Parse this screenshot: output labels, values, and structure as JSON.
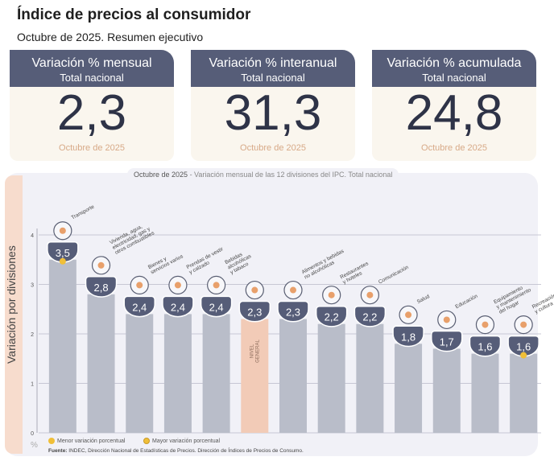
{
  "header": {
    "title": "Índice de precios al consumidor",
    "subtitle": "Octubre de 2025. Resumen ejecutivo"
  },
  "cards": [
    {
      "title": "Variación % mensual",
      "subtitle": "Total nacional",
      "value": "2,3",
      "date": "Octubre de 2025"
    },
    {
      "title": "Variación % interanual",
      "subtitle": "Total nacional",
      "value": "31,3",
      "date": "Octubre de 2025"
    },
    {
      "title": "Variación % acumulada",
      "subtitle": "Total nacional",
      "value": "24,8",
      "date": "Octubre de 2025"
    }
  ],
  "chart_data": {
    "type": "bar",
    "title_prefix": "Octubre de 2025",
    "title": " - Variación mensual de las 12 divisiones del IPC. Total nacional",
    "ylabel": "Variación por divisiones",
    "yunit": "%",
    "ylim": [
      0,
      4
    ],
    "yticks": [
      "0",
      "1",
      "2",
      "3",
      "4"
    ],
    "grid": true,
    "categories": [
      "Transporte",
      "Vivienda, agua, electricidad, gas y otros combustibles",
      "Bienes y servicios varios",
      "Prendas de vestir y calzado",
      "Bebidas alcohólicas y tabaco",
      "NIVEL GENERAL",
      "Alimentos y bebidas no alcohólicas",
      "Restaurantes y hoteles",
      "Comunicación",
      "Salud",
      "Educación",
      "Equipamiento y mantenimiento del hogar",
      "Recreación y cultura"
    ],
    "category_labels": [
      [
        "Transporte"
      ],
      [
        "Vivienda, agua,",
        "electricidad, gas y",
        "otros combustibles"
      ],
      [
        "Bienes y",
        "servicios varios"
      ],
      [
        "Prendas de vestir",
        "y calzado"
      ],
      [
        "Bebidas",
        "alcohólicas",
        "y tabaco"
      ],
      [
        "NIVEL",
        "GENERAL"
      ],
      [
        "Alimentos y bebidas",
        "no alcohólicas"
      ],
      [
        "Restaurantes",
        "y hoteles"
      ],
      [
        "Comunicación"
      ],
      [
        "Salud"
      ],
      [
        "Educación"
      ],
      [
        "Equipamiento",
        "y mantenimiento",
        "del hogar"
      ],
      [
        "Recreación",
        "y cultura"
      ]
    ],
    "values": [
      3.5,
      2.8,
      2.4,
      2.4,
      2.4,
      2.3,
      2.3,
      2.2,
      2.2,
      1.8,
      1.7,
      1.6,
      1.6
    ],
    "value_labels": [
      "3,5",
      "2,8",
      "2,4",
      "2,4",
      "2,4",
      "2,3",
      "2,3",
      "2,2",
      "2,2",
      "1,8",
      "1,7",
      "1,6",
      "1,6"
    ],
    "highlight_index": 5,
    "max_index": 0,
    "min_index": 12,
    "colors": {
      "bar": "#b9bdc9",
      "highlight": "#f2cbb7",
      "badge": "#565d78",
      "dot": "#f0bf38",
      "grid": "#b8b8c8"
    },
    "icons": [
      "car-icon",
      "lightbulb-icon",
      "scissors-icon",
      "tshirt-icon",
      "bottle-icon",
      "basket-icon",
      "basket-icon",
      "cutlery-icon",
      "phone-icon",
      "first-aid-icon",
      "book-icon",
      "appliance-icon",
      "umbrella-icon"
    ],
    "legend": {
      "min_label": "Menor variación porcentual",
      "max_label": "Mayor variación porcentual"
    }
  },
  "source": {
    "label": "Fuente:",
    "text": " INDEC, Dirección Nacional de Estadísticas de Precios. Dirección de Índices de Precios de Consumo."
  }
}
